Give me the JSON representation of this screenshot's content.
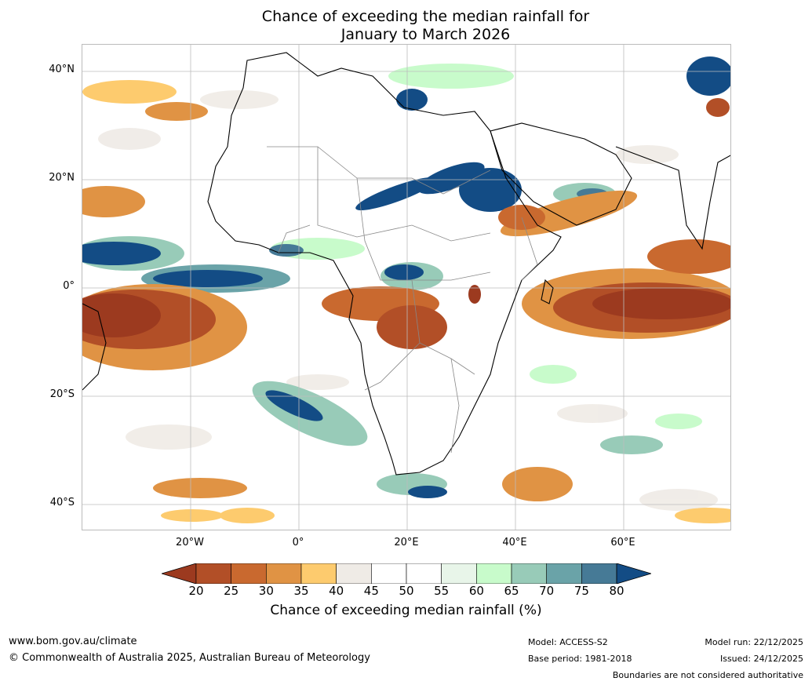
{
  "title": {
    "line1": "Chance of exceeding the median rainfall for",
    "line2": "January to March 2026"
  },
  "map": {
    "lat_labels": [
      "40°N",
      "20°N",
      "0°",
      "20°S",
      "40°S"
    ],
    "lon_labels": [
      "20°W",
      "0°",
      "20°E",
      "40°E",
      "60°E"
    ],
    "extent": {
      "lon_min": -40,
      "lon_max": 80,
      "lat_min": -45,
      "lat_max": 45
    }
  },
  "colorbar": {
    "ticks": [
      "20",
      "25",
      "30",
      "35",
      "40",
      "45",
      "50",
      "55",
      "60",
      "65",
      "70",
      "75",
      "80"
    ],
    "colors": [
      "#9c3a1f",
      "#b24f27",
      "#c9692f",
      "#e09344",
      "#fdcb6e",
      "#efebe6",
      "#ffffff",
      "#ffffff",
      "#e8f5e9",
      "#c8fbcb",
      "#98cbb8",
      "#6aa3a8",
      "#467a96",
      "#134c85"
    ],
    "label": "Chance of exceeding median rainfall (%)"
  },
  "footer": {
    "website": "www.bom.gov.au/climate",
    "copyright": "© Commonwealth of Australia 2025, Australian Bureau of Meteorology",
    "model": "Model: ACCESS-S2",
    "base_period": "Base period: 1981-2018",
    "model_run": "Model run: 22/12/2025",
    "issued": "Issued: 24/12/2025",
    "disclaimer": "Boundaries are not considered authoritative"
  }
}
